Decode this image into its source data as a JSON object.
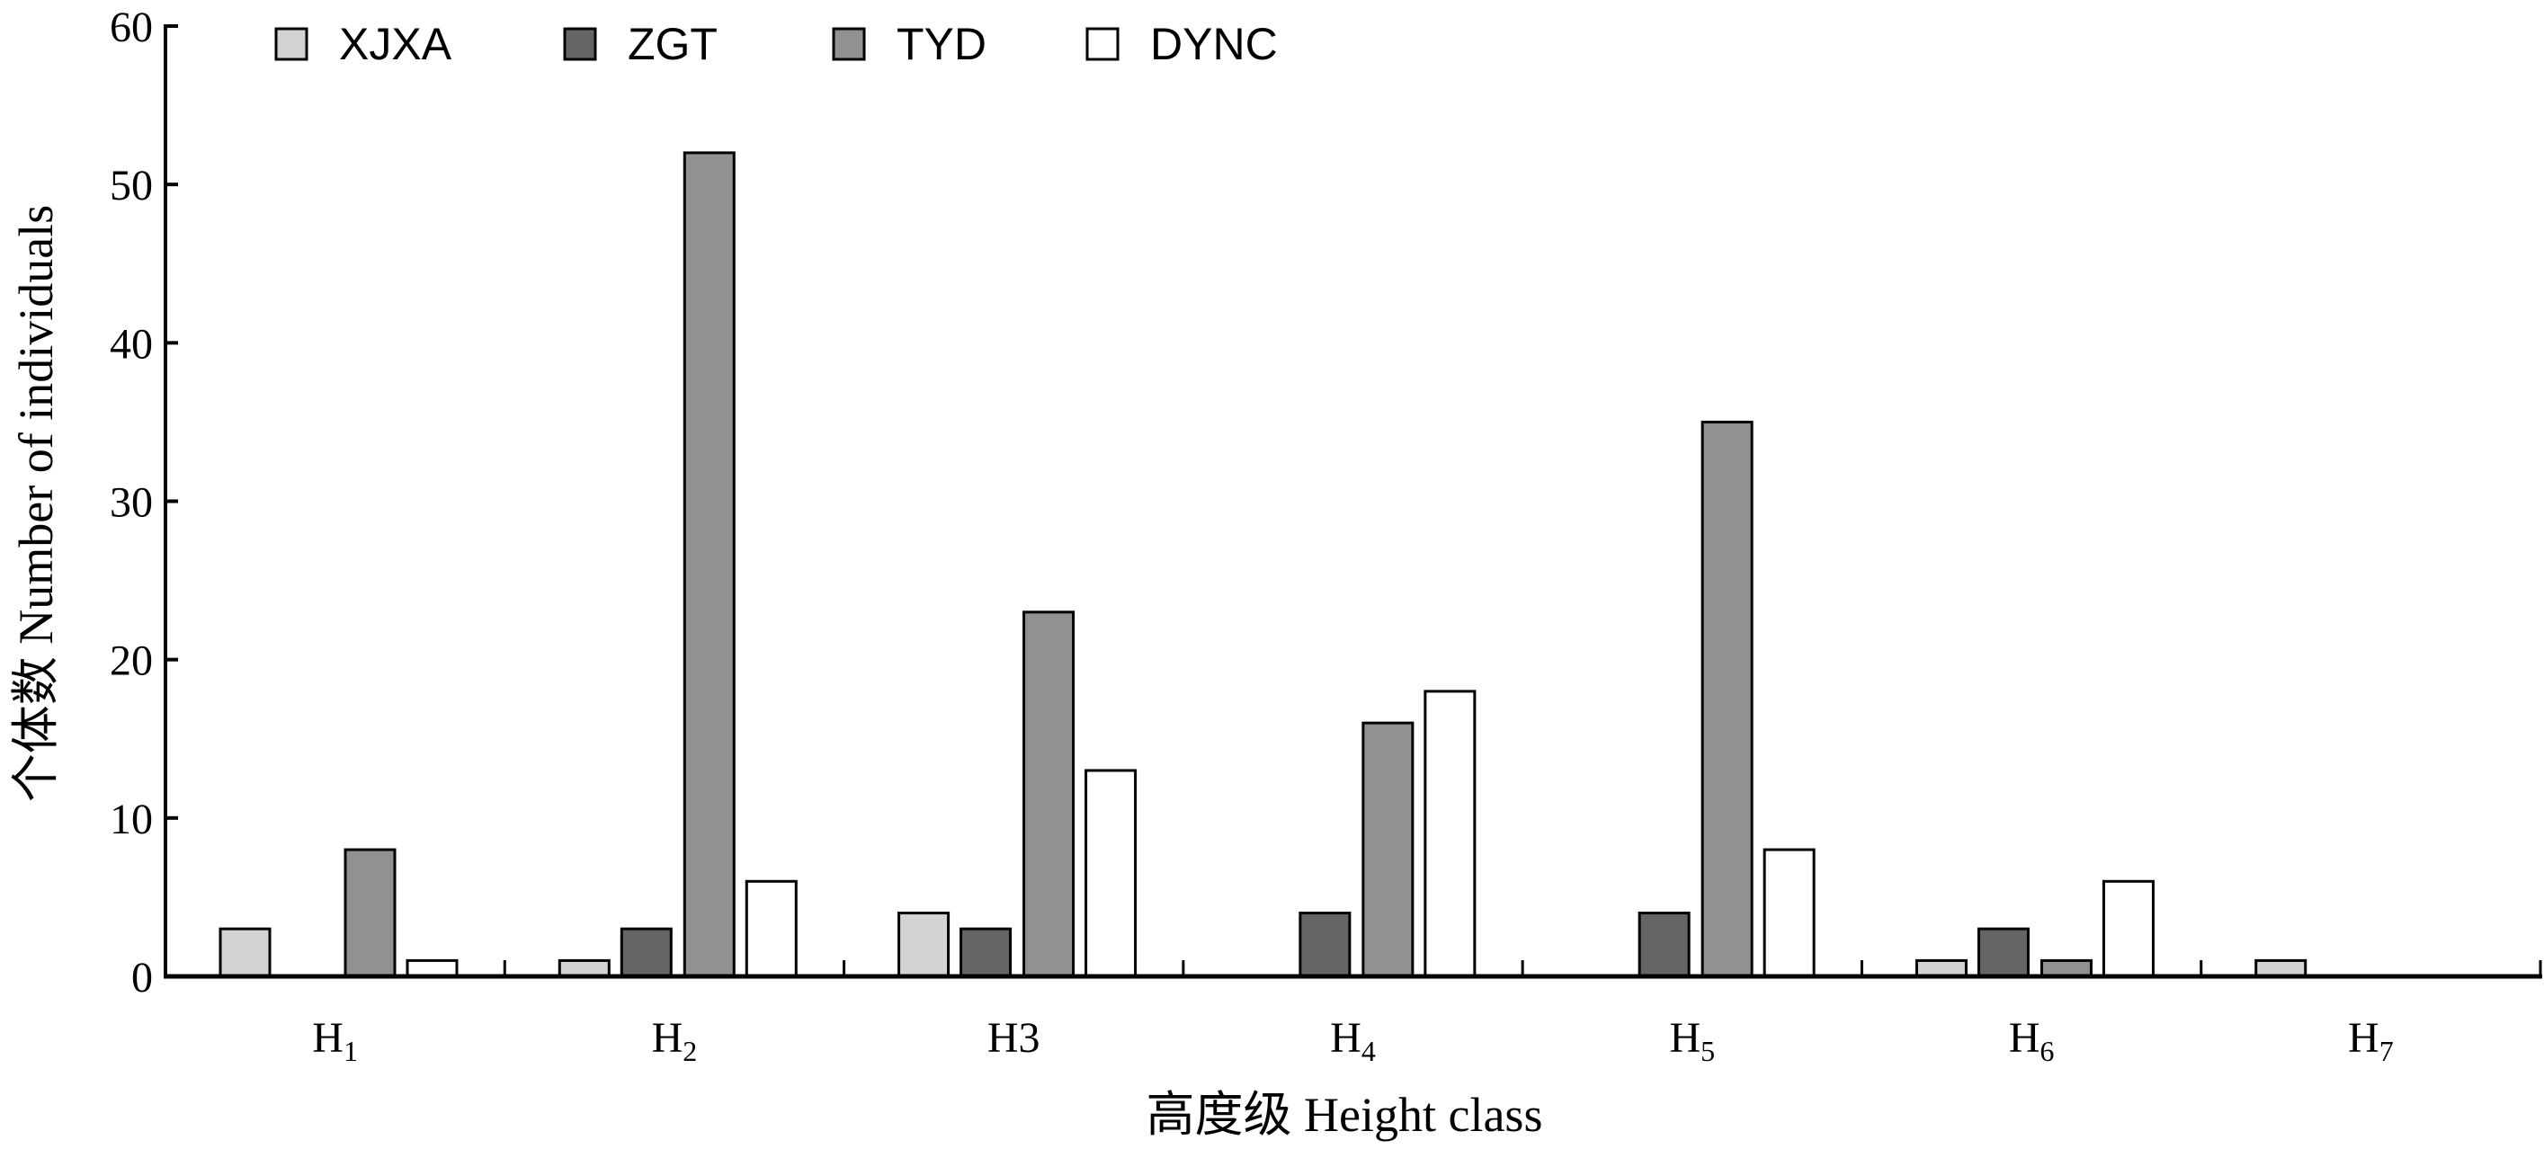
{
  "chart_data": {
    "type": "bar",
    "title": "",
    "xlabel": "高度级 Height class",
    "ylabel": "个体数 Number of individuals",
    "ylim": [
      0,
      60
    ],
    "yticks": [
      0,
      10,
      20,
      30,
      40,
      50,
      60
    ],
    "categories": [
      {
        "base": "H",
        "sub": "1"
      },
      {
        "base": "H",
        "sub": "2"
      },
      {
        "base": "H3",
        "sub": ""
      },
      {
        "base": "H",
        "sub": "4"
      },
      {
        "base": "H",
        "sub": "5"
      },
      {
        "base": "H",
        "sub": "6"
      },
      {
        "base": "H",
        "sub": "7"
      }
    ],
    "series": [
      {
        "name": "XJXA",
        "color": "#d3d3d3",
        "values": [
          3,
          1,
          4,
          0,
          0,
          1,
          1
        ]
      },
      {
        "name": "ZGT",
        "color": "#656565",
        "values": [
          0,
          3,
          3,
          4,
          4,
          3,
          0
        ]
      },
      {
        "name": "TYD",
        "color": "#919191",
        "values": [
          8,
          52,
          23,
          16,
          35,
          1,
          0
        ]
      },
      {
        "name": "DYNC",
        "color": "#ffffff",
        "values": [
          1,
          6,
          13,
          18,
          8,
          6,
          0
        ]
      }
    ],
    "grid": false,
    "legend_position": "top-left"
  }
}
